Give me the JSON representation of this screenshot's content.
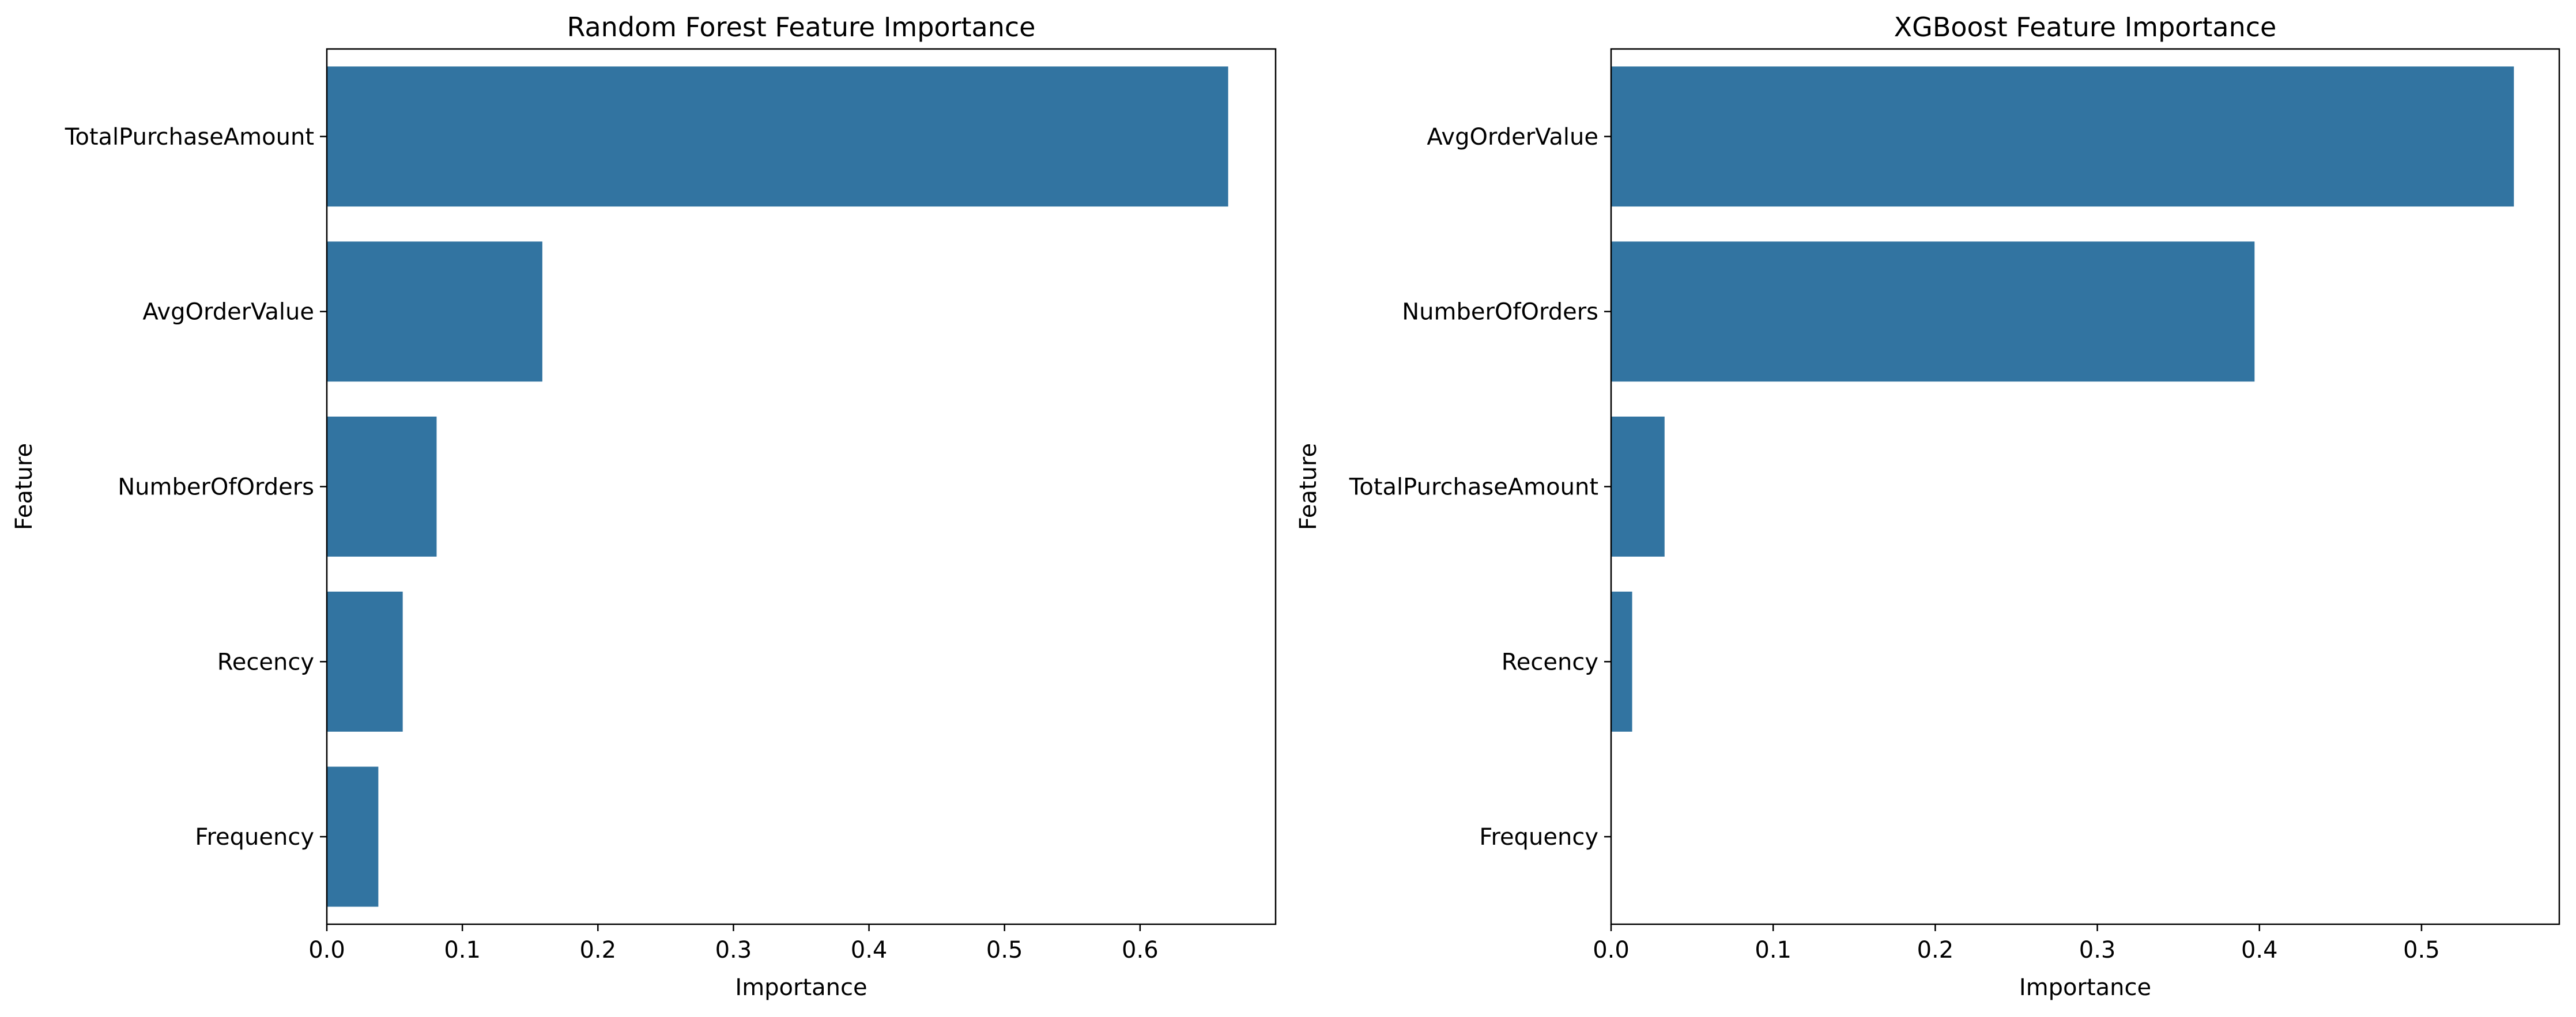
{
  "chart_data": [
    {
      "type": "bar",
      "orientation": "horizontal",
      "title": "Random Forest Feature Importance",
      "xlabel": "Importance",
      "ylabel": "Feature",
      "categories": [
        "TotalPurchaseAmount",
        "AvgOrderValue",
        "NumberOfOrders",
        "Recency",
        "Frequency"
      ],
      "values": [
        0.665,
        0.159,
        0.081,
        0.056,
        0.038
      ],
      "xlim": [
        0,
        0.7
      ],
      "xticks": [
        0,
        0.1,
        0.2,
        0.3,
        0.4,
        0.5,
        0.6
      ],
      "xtick_labels": [
        "0.0",
        "0.1",
        "0.2",
        "0.3",
        "0.4",
        "0.5",
        "0.6"
      ],
      "grid": false,
      "bar_color": "#3274a1"
    },
    {
      "type": "bar",
      "orientation": "horizontal",
      "title": "XGBoost Feature Importance",
      "xlabel": "Importance",
      "ylabel": "Feature",
      "categories": [
        "AvgOrderValue",
        "NumberOfOrders",
        "TotalPurchaseAmount",
        "Recency",
        "Frequency"
      ],
      "values": [
        0.557,
        0.397,
        0.033,
        0.013,
        0.0
      ],
      "xlim": [
        0,
        0.585
      ],
      "xticks": [
        0,
        0.1,
        0.2,
        0.3,
        0.4,
        0.5
      ],
      "xtick_labels": [
        "0.0",
        "0.1",
        "0.2",
        "0.3",
        "0.4",
        "0.5"
      ],
      "grid": false,
      "bar_color": "#3274a1"
    }
  ]
}
